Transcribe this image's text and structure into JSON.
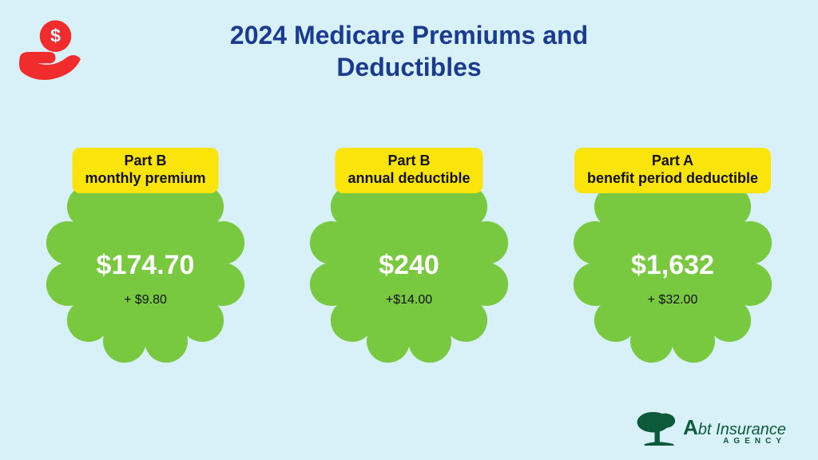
{
  "background_color": "#d8f1f8",
  "title": {
    "text_line1": "2024 Medicare Premiums and",
    "text_line2": "Deductibles",
    "color": "#1a3b8f",
    "fontsize": 32
  },
  "icon": {
    "color": "#f02c2c"
  },
  "badges": {
    "shape_fill": "#78c93f",
    "tag_bg": "#fbe409",
    "tag_text_color": "#111111",
    "tag_fontsize": 18,
    "amount_fontsize": 34,
    "delta_color": "#111111",
    "delta_fontsize": 16,
    "items": [
      {
        "tag_line1": "Part B",
        "tag_line2": "monthly premium",
        "amount": "$174.70",
        "delta": "+ $9.80"
      },
      {
        "tag_line1": "Part B",
        "tag_line2": "annual deductible",
        "amount": "$240",
        "delta": "+$14.00"
      },
      {
        "tag_line1": "Part A",
        "tag_line2": "benefit period deductible",
        "amount": "$1,632",
        "delta": "+ $32.00"
      }
    ]
  },
  "logo": {
    "color": "#0c5a3a",
    "line1_prefix_big": "A",
    "line1_rest": "bt Insurance",
    "line2": "AGENCY",
    "fontsize": 20
  }
}
